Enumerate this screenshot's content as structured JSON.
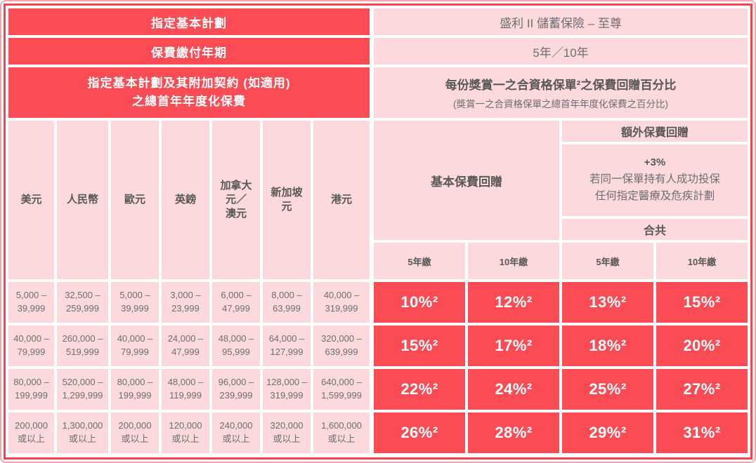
{
  "plan": {
    "designated_plan_label": "指定基本計劃",
    "designated_plan_value": "盛利 II 儲蓄保險 – 至尊",
    "payment_term_label": "保費繳付年期",
    "payment_term_value": "5年／10年",
    "annualized_premium_label": "指定基本計劃及其附加契約 (如適用)\n之總首年年度化保費",
    "rebate_title": "每份獎賞一之合資格保單²之保費回贈百分比",
    "rebate_subtitle": "(獎賞一之合資格保單之總首年年度化保費之百分比)"
  },
  "currencies": [
    "美元",
    "人民幣",
    "歐元",
    "英鎊",
    "加拿大\n元／\n澳元",
    "新加坡\n元",
    "港元"
  ],
  "rebate": {
    "basic_label": "基本保費回贈",
    "extra_label": "額外保費回贈",
    "extra_bonus": "+3%",
    "extra_condition": "若同一保單持有人成功投保\n任何指定醫療及危疾計劃",
    "total_label": "合共",
    "terms": [
      "5年繳",
      "10年繳",
      "5年繳",
      "10年繳"
    ]
  },
  "bands": [
    {
      "amounts": [
        "5,000 –\n39,999",
        "32,500 –\n259,999",
        "5,000 –\n39,999",
        "3,000 –\n23,999",
        "6,000 –\n47,999",
        "8,000 –\n63,999",
        "40,000 –\n319,999"
      ],
      "rebates": [
        "10%²",
        "12%²",
        "13%²",
        "15%²"
      ]
    },
    {
      "amounts": [
        "40,000 –\n79,999",
        "260,000 –\n519,999",
        "40,000 –\n79,999",
        "24,000 –\n47,999",
        "48,000 –\n95,999",
        "64,000 –\n127,999",
        "320,000 –\n639,999"
      ],
      "rebates": [
        "15%²",
        "17%²",
        "18%²",
        "20%²"
      ]
    },
    {
      "amounts": [
        "80,000 –\n199,999",
        "520,000 –\n1,299,999",
        "80,000 –\n199,999",
        "48,000 –\n119,999",
        "96,000 –\n239,999",
        "128,000 –\n319,999",
        "640,000 –\n1,599,999"
      ],
      "rebates": [
        "22%²",
        "24%²",
        "25%²",
        "27%²"
      ]
    },
    {
      "amounts": [
        "200,000\n或以上",
        "1,300,000\n或以上",
        "200,000\n或以上",
        "120,000\n或以上",
        "240,000\n或以上",
        "320,000\n或以上",
        "1,600,000\n或以上"
      ],
      "rebates": [
        "26%²",
        "28%²",
        "29%²",
        "31%²"
      ]
    }
  ],
  "colors": {
    "accent_red": "#fb4c56",
    "light_pink": "#fcd9dc",
    "border_outer": "#f9a4ab",
    "border_inner": "#f7434d",
    "text_dark": "#595757",
    "text_gray": "#6d6e71",
    "text_on_red": "#ffffff"
  }
}
